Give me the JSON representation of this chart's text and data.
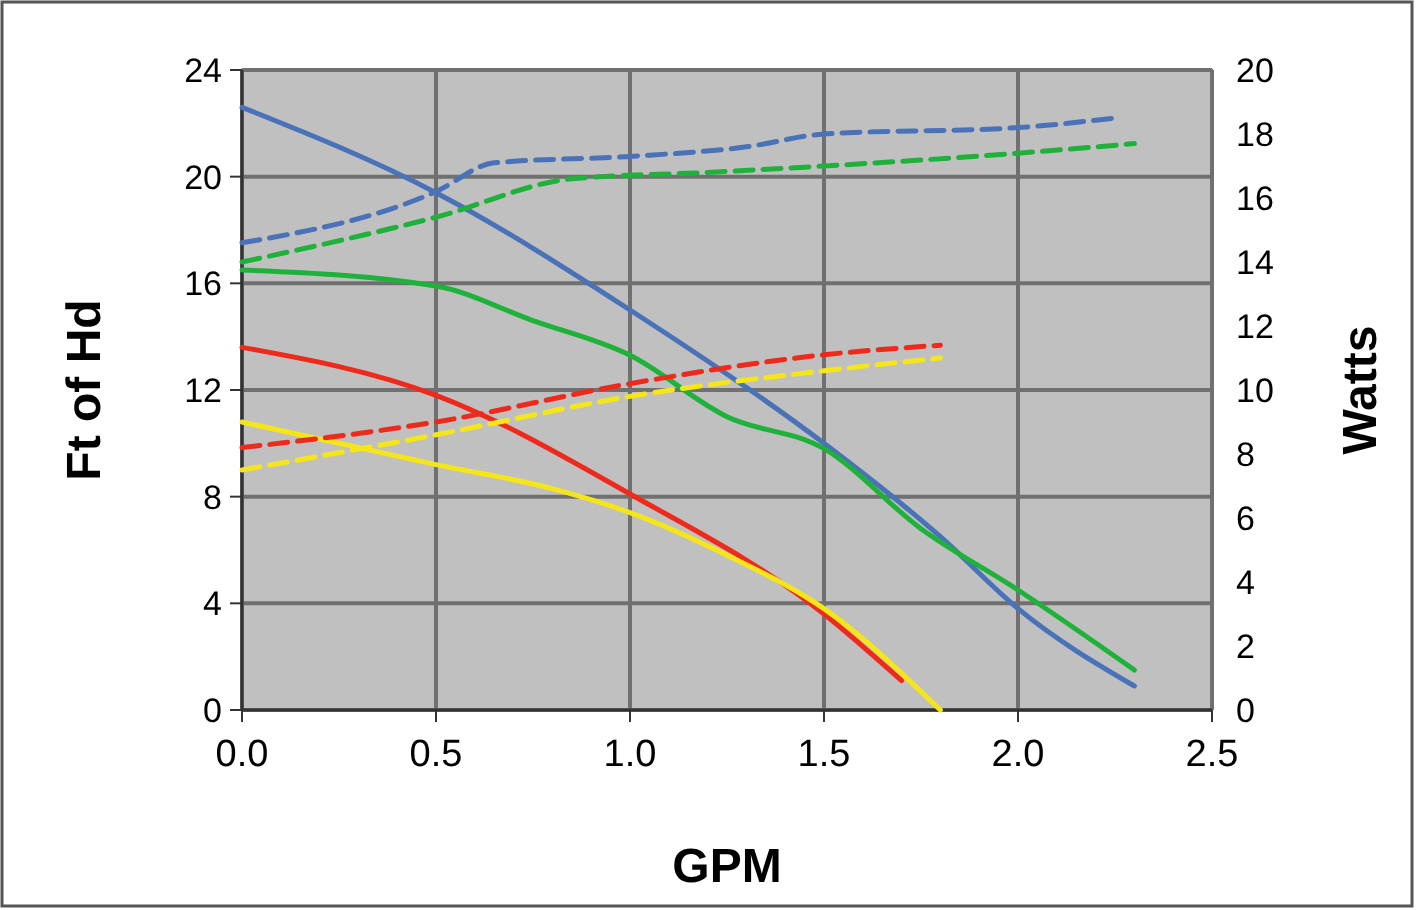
{
  "chart_data": {
    "type": "line",
    "xlabel": "GPM",
    "ylabel": "Ft of Hd",
    "y2label": "Watts",
    "xlim": [
      0,
      2.5
    ],
    "xticks": [
      {
        "value": 0,
        "label": "0.0"
      },
      {
        "value": 0.5,
        "label": "0.5"
      },
      {
        "value": 1,
        "label": "1.0"
      },
      {
        "value": 1.5,
        "label": "1.5"
      },
      {
        "value": 2,
        "label": "2.0"
      },
      {
        "value": 2.5,
        "label": "2.5"
      }
    ],
    "ylim": [
      0,
      24
    ],
    "yticks": [
      0,
      4,
      8,
      12,
      16,
      20,
      24
    ],
    "y2lim": [
      0,
      20
    ],
    "y2ticks": [
      0,
      2,
      4,
      6,
      8,
      10,
      12,
      14,
      16,
      18,
      20
    ],
    "grid": true,
    "series": [
      {
        "color": "#4a72b8",
        "x": [
          0,
          0.5,
          1,
          1.5,
          1.8,
          2,
          2.3
        ],
        "values": [
          22.6,
          19.4,
          15,
          10,
          6.5,
          3.8,
          0.9
        ]
      },
      {
        "color": "#1fb23a",
        "x": [
          0,
          0.5,
          0.75,
          1,
          1.25,
          1.5,
          1.75,
          2,
          2.3
        ],
        "values": [
          16.5,
          15.9,
          14.6,
          13.3,
          11,
          9.8,
          6.8,
          4.5,
          1.5
        ]
      },
      {
        "color": "#ee2a1c",
        "x": [
          0,
          0.5,
          1,
          1.5,
          1.7
        ],
        "values": [
          13.6,
          11.8,
          8.1,
          3.6,
          1.1
        ]
      },
      {
        "color": "#f5e61a",
        "x": [
          0,
          0.5,
          0.8,
          1,
          1.25,
          1.5,
          1.8
        ],
        "values": [
          10.8,
          9.2,
          8.3,
          7.4,
          5.8,
          3.8,
          0
        ]
      },
      {
        "color": "#4a72b8",
        "axis": "y2",
        "line_style": "dashed",
        "x": [
          0,
          0.5,
          0.65,
          1,
          1.3,
          1.5,
          2,
          2.25
        ],
        "values": [
          14.6,
          16.2,
          17.1,
          17.3,
          17.6,
          18,
          18.2,
          18.5
        ]
      },
      {
        "color": "#1fb23a",
        "axis": "y2",
        "line_style": "dashed",
        "x": [
          0,
          0.5,
          0.85,
          1.2,
          1.5,
          2,
          2.3
        ],
        "values": [
          14,
          15.4,
          16.6,
          16.8,
          17,
          17.4,
          17.7
        ]
      },
      {
        "color": "#ee2a1c",
        "axis": "y2",
        "line_style": "dashed",
        "x": [
          0,
          0.5,
          1,
          1.5,
          1.8
        ],
        "values": [
          8.2,
          9,
          10.2,
          11.1,
          11.4
        ]
      },
      {
        "color": "#f5e61a",
        "axis": "y2",
        "line_style": "dashed",
        "x": [
          0,
          0.5,
          1,
          1.5,
          1.8
        ],
        "values": [
          7.5,
          8.6,
          9.8,
          10.6,
          11
        ]
      }
    ]
  }
}
